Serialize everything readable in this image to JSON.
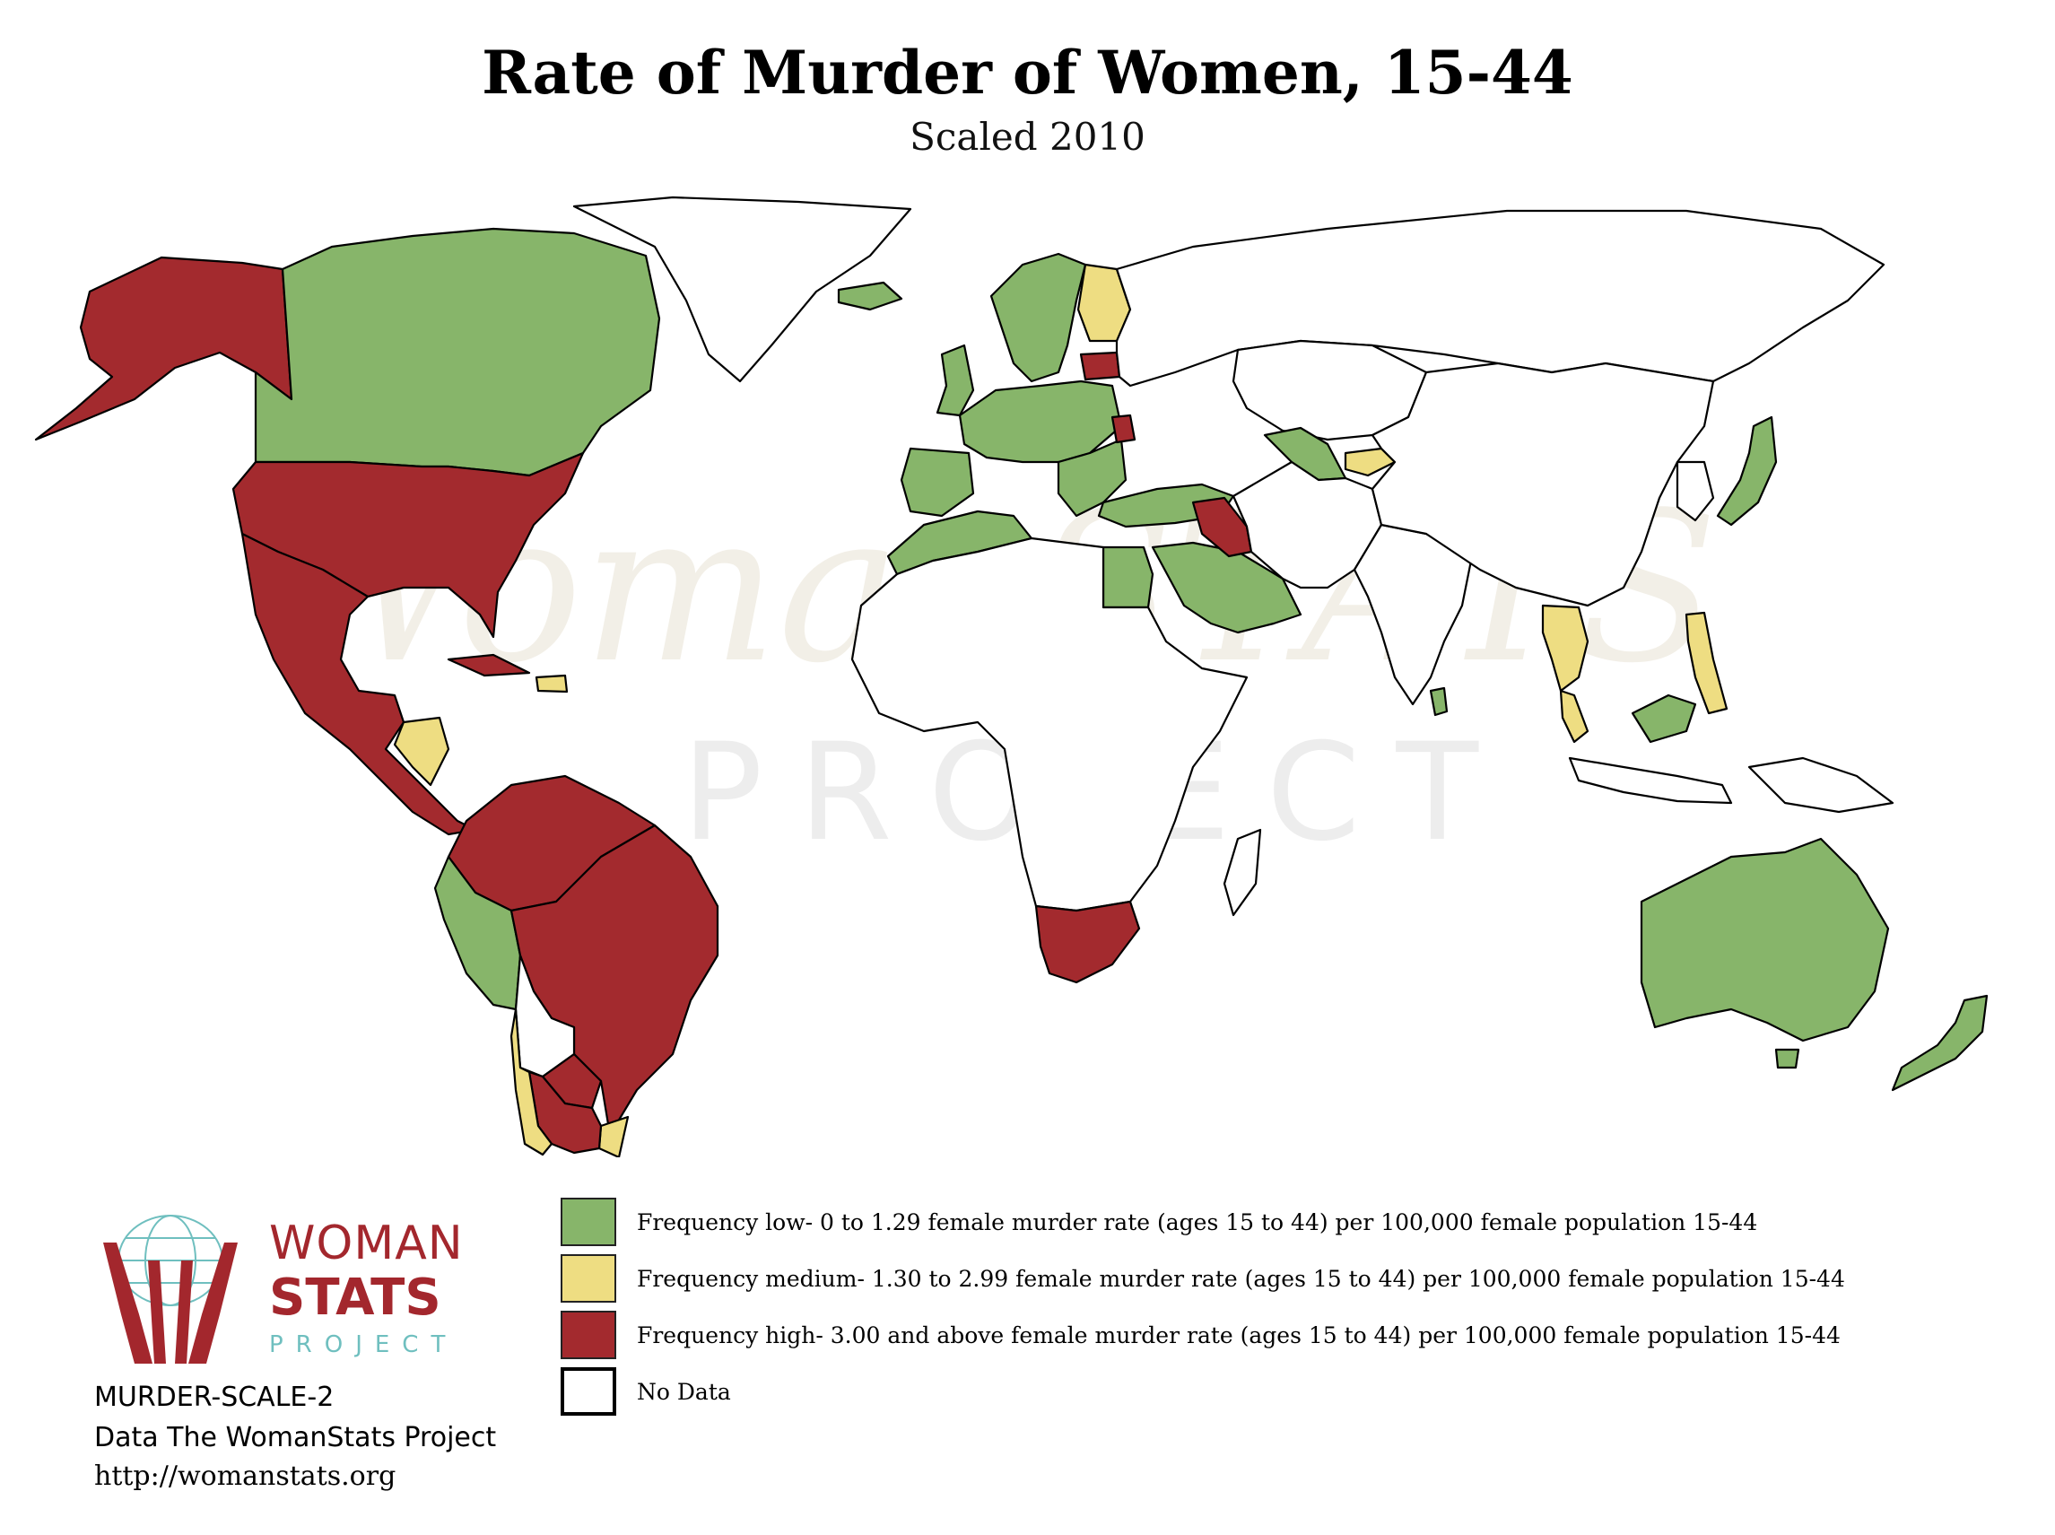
{
  "title": "Rate of Murder of Women, 15-44",
  "subtitle": "Scaled 2010",
  "watermark": {
    "main": "WomanSTATS",
    "sub": "PROJECT"
  },
  "colors": {
    "low": "#87b56a",
    "medium": "#eedd82",
    "high": "#a32a2e",
    "nodata": "#ffffff",
    "border": "#000000"
  },
  "legend": [
    {
      "key": "low",
      "label": "Frequency low- 0 to 1.29 female murder rate (ages 15 to 44) per 100,000 female population 15-44"
    },
    {
      "key": "medium",
      "label": "Frequency medium- 1.30 to 2.99 female murder rate (ages 15 to 44) per 100,000 female population 15-44"
    },
    {
      "key": "high",
      "label": "Frequency high- 3.00 and above female murder rate (ages 15 to 44) per 100,000 female population 15-44"
    },
    {
      "key": "nodata",
      "label": "No Data"
    }
  ],
  "logo": {
    "line1": "WOMAN",
    "line2": "STATS",
    "line3": "PROJECT"
  },
  "footer": {
    "code": "MURDER-SCALE-2",
    "source": "Data The WomanStats Project",
    "url": "http://womanstats.org"
  },
  "regions": [
    {
      "name": "alaska",
      "category": "high"
    },
    {
      "name": "canada",
      "category": "low"
    },
    {
      "name": "greenland",
      "category": "nodata"
    },
    {
      "name": "usa",
      "category": "high"
    },
    {
      "name": "mexico-central-america",
      "category": "high"
    },
    {
      "name": "cuba",
      "category": "high"
    },
    {
      "name": "hispaniola",
      "category": "medium"
    },
    {
      "name": "honduras-nicaragua",
      "category": "medium"
    },
    {
      "name": "northern-south-america",
      "category": "high"
    },
    {
      "name": "brazil",
      "category": "high"
    },
    {
      "name": "peru",
      "category": "low"
    },
    {
      "name": "bolivia",
      "category": "nodata"
    },
    {
      "name": "paraguay",
      "category": "high"
    },
    {
      "name": "argentina",
      "category": "high"
    },
    {
      "name": "chile",
      "category": "medium"
    },
    {
      "name": "uruguay",
      "category": "medium"
    },
    {
      "name": "iceland",
      "category": "low"
    },
    {
      "name": "scandinavia",
      "category": "low"
    },
    {
      "name": "finland",
      "category": "medium"
    },
    {
      "name": "baltics",
      "category": "high"
    },
    {
      "name": "western-europe",
      "category": "low"
    },
    {
      "name": "uk",
      "category": "low"
    },
    {
      "name": "iberia",
      "category": "low"
    },
    {
      "name": "balkans-east-europe",
      "category": "low"
    },
    {
      "name": "moldova",
      "category": "high"
    },
    {
      "name": "turkey",
      "category": "low"
    },
    {
      "name": "russia",
      "category": "nodata"
    },
    {
      "name": "north-africa-west",
      "category": "low"
    },
    {
      "name": "egypt",
      "category": "low"
    },
    {
      "name": "iraq",
      "category": "high"
    },
    {
      "name": "saudi-arabia",
      "category": "low"
    },
    {
      "name": "africa-interior",
      "category": "nodata"
    },
    {
      "name": "south-africa",
      "category": "high"
    },
    {
      "name": "madagascar",
      "category": "nodata"
    },
    {
      "name": "central-asia",
      "category": "nodata"
    },
    {
      "name": "uzbekistan",
      "category": "low"
    },
    {
      "name": "kyrgyzstan",
      "category": "medium"
    },
    {
      "name": "iran-afghanistan-pakistan",
      "category": "nodata"
    },
    {
      "name": "india",
      "category": "nodata"
    },
    {
      "name": "sri-lanka",
      "category": "low"
    },
    {
      "name": "china-mongolia",
      "category": "nodata"
    },
    {
      "name": "korea",
      "category": "nodata"
    },
    {
      "name": "japan",
      "category": "low"
    },
    {
      "name": "thailand",
      "category": "medium"
    },
    {
      "name": "malaysia-peninsula",
      "category": "medium"
    },
    {
      "name": "borneo",
      "category": "low"
    },
    {
      "name": "philippines",
      "category": "medium"
    },
    {
      "name": "indonesia",
      "category": "nodata"
    },
    {
      "name": "papua",
      "category": "nodata"
    },
    {
      "name": "australia",
      "category": "low"
    },
    {
      "name": "tasmania",
      "category": "low"
    },
    {
      "name": "new-zealand",
      "category": "low"
    }
  ]
}
